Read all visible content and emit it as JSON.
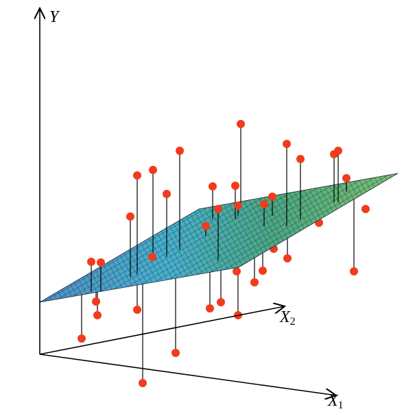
{
  "axes": {
    "y": "Y",
    "x2": {
      "letter": "X",
      "subscript": "2"
    },
    "x1": {
      "letter": "X",
      "subscript": "1"
    }
  }
}
